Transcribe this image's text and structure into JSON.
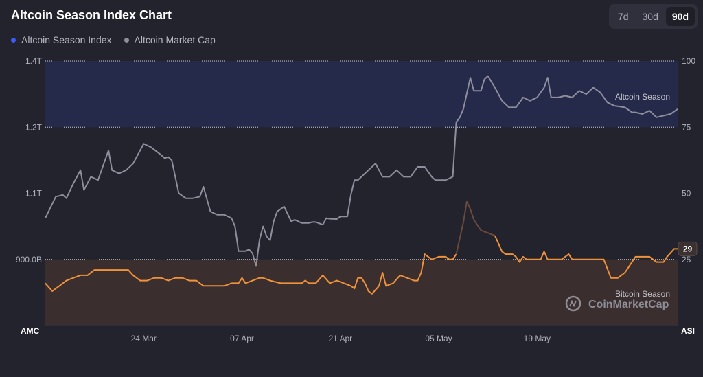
{
  "header": {
    "title": "Altcoin Season Index Chart",
    "ranges": [
      "7d",
      "30d",
      "90d"
    ],
    "active_range": "90d"
  },
  "legend": [
    {
      "label": "Altcoin Season Index",
      "color": "#3b5bf5"
    },
    {
      "label": "Altcoin Market Cap",
      "color": "#8e8e9c"
    }
  ],
  "colors": {
    "background": "#23232d",
    "altcoin_zone": "#262a4a",
    "bitcoin_zone": "#3a2e2f",
    "market_cap_line": "#8e8e9c",
    "index_line": "#f0923a",
    "index_line_dim": "#6a4a3c"
  },
  "zones": {
    "altcoin_label": "Altcoin Season",
    "bitcoin_label": "Bitcoin Season"
  },
  "watermark": "CoinMarketCap",
  "chart_data": {
    "type": "line",
    "left_axis_title": "AMC",
    "right_axis_title": "ASI",
    "left_ticks": [
      "1.4T",
      "1.2T",
      "1.1T",
      "900.0B"
    ],
    "right_ticks": [
      "100",
      "75",
      "50",
      "25"
    ],
    "right_ylim": [
      0,
      100
    ],
    "x_labels": [
      "24 Mar",
      "07 Apr",
      "21 Apr",
      "05 May",
      "19 May"
    ],
    "x_label_days": [
      14,
      28,
      42,
      56,
      70
    ],
    "x_range_days": [
      0,
      90
    ],
    "grid": false,
    "current_index_label": "29",
    "series": [
      {
        "name": "Altcoin Season Index",
        "axis": "right",
        "points": [
          [
            0.0,
            16
          ],
          [
            1.0,
            13
          ],
          [
            2.0,
            15
          ],
          [
            3.0,
            17
          ],
          [
            4.0,
            18
          ],
          [
            5.0,
            19
          ],
          [
            6.0,
            19
          ],
          [
            7.0,
            21
          ],
          [
            8.0,
            21
          ],
          [
            9.0,
            21
          ],
          [
            10.0,
            21
          ],
          [
            11.0,
            21
          ],
          [
            11.8,
            21
          ],
          [
            12.5,
            19
          ],
          [
            13.5,
            17
          ],
          [
            14.5,
            17
          ],
          [
            15.5,
            18
          ],
          [
            16.5,
            18
          ],
          [
            17.5,
            17
          ],
          [
            18.5,
            18
          ],
          [
            19.5,
            18
          ],
          [
            20.5,
            17
          ],
          [
            21.5,
            17
          ],
          [
            22.5,
            15
          ],
          [
            23.5,
            15
          ],
          [
            24.5,
            15
          ],
          [
            25.5,
            15
          ],
          [
            26.5,
            16
          ],
          [
            27.5,
            16
          ],
          [
            28.0,
            18
          ],
          [
            28.5,
            16
          ],
          [
            29.5,
            17
          ],
          [
            30.5,
            18
          ],
          [
            31.0,
            18
          ],
          [
            32.0,
            17
          ],
          [
            33.5,
            16
          ],
          [
            34.5,
            16
          ],
          [
            35.5,
            16
          ],
          [
            36.5,
            16
          ],
          [
            37.0,
            17
          ],
          [
            37.5,
            16
          ],
          [
            38.5,
            16
          ],
          [
            39.5,
            19
          ],
          [
            40.5,
            16
          ],
          [
            41.5,
            17
          ],
          [
            42.5,
            16
          ],
          [
            43.5,
            15
          ],
          [
            44.0,
            14
          ],
          [
            44.5,
            18
          ],
          [
            45.0,
            18
          ],
          [
            45.5,
            16
          ],
          [
            46.0,
            13
          ],
          [
            46.5,
            12
          ],
          [
            47.5,
            15
          ],
          [
            48.0,
            20
          ],
          [
            48.5,
            15
          ],
          [
            49.5,
            16
          ],
          [
            50.5,
            19
          ],
          [
            51.5,
            18
          ],
          [
            52.5,
            17
          ],
          [
            53.0,
            17
          ],
          [
            53.5,
            20
          ],
          [
            54.0,
            27
          ],
          [
            54.5,
            26
          ],
          [
            55.0,
            25
          ],
          [
            56.0,
            26
          ],
          [
            57.0,
            26
          ],
          [
            57.5,
            25
          ],
          [
            58.0,
            25
          ],
          [
            58.5,
            27
          ],
          [
            59.5,
            39
          ],
          [
            60.0,
            47
          ],
          [
            60.5,
            44
          ],
          [
            61.0,
            40
          ],
          [
            62.0,
            36
          ],
          [
            63.0,
            35
          ],
          [
            64.0,
            34
          ],
          [
            65.0,
            28
          ],
          [
            65.5,
            27
          ],
          [
            66.5,
            27
          ],
          [
            67.0,
            26
          ],
          [
            67.5,
            24
          ],
          [
            68.0,
            26
          ],
          [
            68.5,
            25
          ],
          [
            69.5,
            25
          ],
          [
            70.5,
            25
          ],
          [
            71.0,
            28
          ],
          [
            71.5,
            25
          ],
          [
            72.5,
            25
          ],
          [
            73.5,
            25
          ],
          [
            74.5,
            27
          ],
          [
            75.0,
            25
          ],
          [
            75.5,
            25
          ],
          [
            76.5,
            25
          ],
          [
            77.5,
            25
          ],
          [
            78.5,
            25
          ],
          [
            79.5,
            25
          ],
          [
            80.5,
            18
          ],
          [
            81.5,
            18
          ],
          [
            82.5,
            20
          ],
          [
            83.0,
            22
          ],
          [
            84.0,
            26
          ],
          [
            85.0,
            26
          ],
          [
            86.0,
            26
          ],
          [
            87.0,
            24
          ],
          [
            88.0,
            24
          ],
          [
            88.5,
            26
          ],
          [
            89.5,
            29
          ],
          [
            90.0,
            29
          ]
        ]
      },
      {
        "name": "Altcoin Market Cap",
        "axis": "left",
        "points": [
          [
            0.0,
            1.025
          ],
          [
            1.5,
            1.09
          ],
          [
            2.5,
            1.095
          ],
          [
            3.0,
            1.085
          ],
          [
            4.0,
            1.115
          ],
          [
            5.0,
            1.135
          ],
          [
            5.5,
            1.105
          ],
          [
            6.5,
            1.125
          ],
          [
            7.5,
            1.12
          ],
          [
            8.0,
            1.135
          ],
          [
            9.0,
            1.165
          ],
          [
            9.5,
            1.135
          ],
          [
            10.5,
            1.13
          ],
          [
            11.5,
            1.135
          ],
          [
            12.5,
            1.145
          ],
          [
            13.0,
            1.155
          ],
          [
            14.0,
            1.175
          ],
          [
            15.0,
            1.17
          ],
          [
            16.5,
            1.158
          ],
          [
            17.0,
            1.153
          ],
          [
            17.5,
            1.155
          ],
          [
            18.0,
            1.15
          ],
          [
            19.0,
            1.1
          ],
          [
            20.0,
            1.085
          ],
          [
            21.0,
            1.085
          ],
          [
            22.0,
            1.09
          ],
          [
            22.5,
            1.11
          ],
          [
            23.5,
            1.045
          ],
          [
            24.5,
            1.035
          ],
          [
            25.5,
            1.035
          ],
          [
            26.5,
            1.025
          ],
          [
            27.0,
            1.0
          ],
          [
            27.5,
            0.925
          ],
          [
            28.5,
            0.925
          ],
          [
            29.0,
            0.93
          ],
          [
            29.5,
            0.918
          ],
          [
            30.0,
            0.89
          ],
          [
            30.5,
            0.96
          ],
          [
            31.0,
            1.0
          ],
          [
            31.5,
            0.97
          ],
          [
            32.0,
            0.958
          ],
          [
            32.5,
            1.015
          ],
          [
            33.0,
            1.045
          ],
          [
            34.0,
            1.06
          ],
          [
            35.0,
            1.015
          ],
          [
            35.5,
            1.02
          ],
          [
            36.5,
            1.01
          ],
          [
            37.5,
            1.01
          ],
          [
            38.0,
            1.013
          ],
          [
            38.5,
            1.013
          ],
          [
            39.5,
            1.005
          ],
          [
            40.0,
            1.025
          ],
          [
            40.5,
            1.023
          ],
          [
            41.5,
            1.022
          ],
          [
            42.0,
            1.03
          ],
          [
            42.5,
            1.03
          ],
          [
            43.0,
            1.03
          ],
          [
            43.5,
            1.095
          ],
          [
            44.0,
            1.12
          ],
          [
            44.5,
            1.12
          ],
          [
            45.0,
            1.125
          ],
          [
            46.0,
            1.135
          ],
          [
            47.0,
            1.145
          ],
          [
            48.0,
            1.125
          ],
          [
            49.0,
            1.125
          ],
          [
            50.0,
            1.135
          ],
          [
            51.0,
            1.125
          ],
          [
            52.0,
            1.125
          ],
          [
            53.0,
            1.14
          ],
          [
            54.0,
            1.14
          ],
          [
            55.0,
            1.125
          ],
          [
            55.5,
            1.12
          ],
          [
            56.0,
            1.12
          ],
          [
            57.0,
            1.12
          ],
          [
            58.0,
            1.125
          ],
          [
            58.5,
            1.215
          ],
          [
            59.0,
            1.23
          ],
          [
            59.5,
            1.255
          ],
          [
            60.5,
            1.35
          ],
          [
            61.0,
            1.31
          ],
          [
            62.0,
            1.31
          ],
          [
            62.5,
            1.345
          ],
          [
            63.0,
            1.355
          ],
          [
            64.0,
            1.32
          ],
          [
            65.0,
            1.28
          ],
          [
            66.0,
            1.26
          ],
          [
            67.0,
            1.26
          ],
          [
            68.0,
            1.29
          ],
          [
            69.0,
            1.28
          ],
          [
            70.0,
            1.29
          ],
          [
            71.0,
            1.32
          ],
          [
            71.5,
            1.35
          ],
          [
            72.0,
            1.29
          ],
          [
            73.0,
            1.29
          ],
          [
            74.0,
            1.295
          ],
          [
            75.0,
            1.29
          ],
          [
            76.0,
            1.31
          ],
          [
            77.0,
            1.3
          ],
          [
            77.5,
            1.31
          ],
          [
            78.0,
            1.32
          ],
          [
            79.0,
            1.305
          ],
          [
            80.0,
            1.275
          ],
          [
            81.0,
            1.265
          ],
          [
            82.5,
            1.26
          ],
          [
            83.5,
            1.245
          ],
          [
            84.0,
            1.245
          ],
          [
            85.0,
            1.24
          ],
          [
            86.0,
            1.25
          ],
          [
            87.0,
            1.23
          ],
          [
            88.0,
            1.235
          ],
          [
            89.0,
            1.24
          ],
          [
            90.0,
            1.255
          ]
        ]
      }
    ]
  }
}
